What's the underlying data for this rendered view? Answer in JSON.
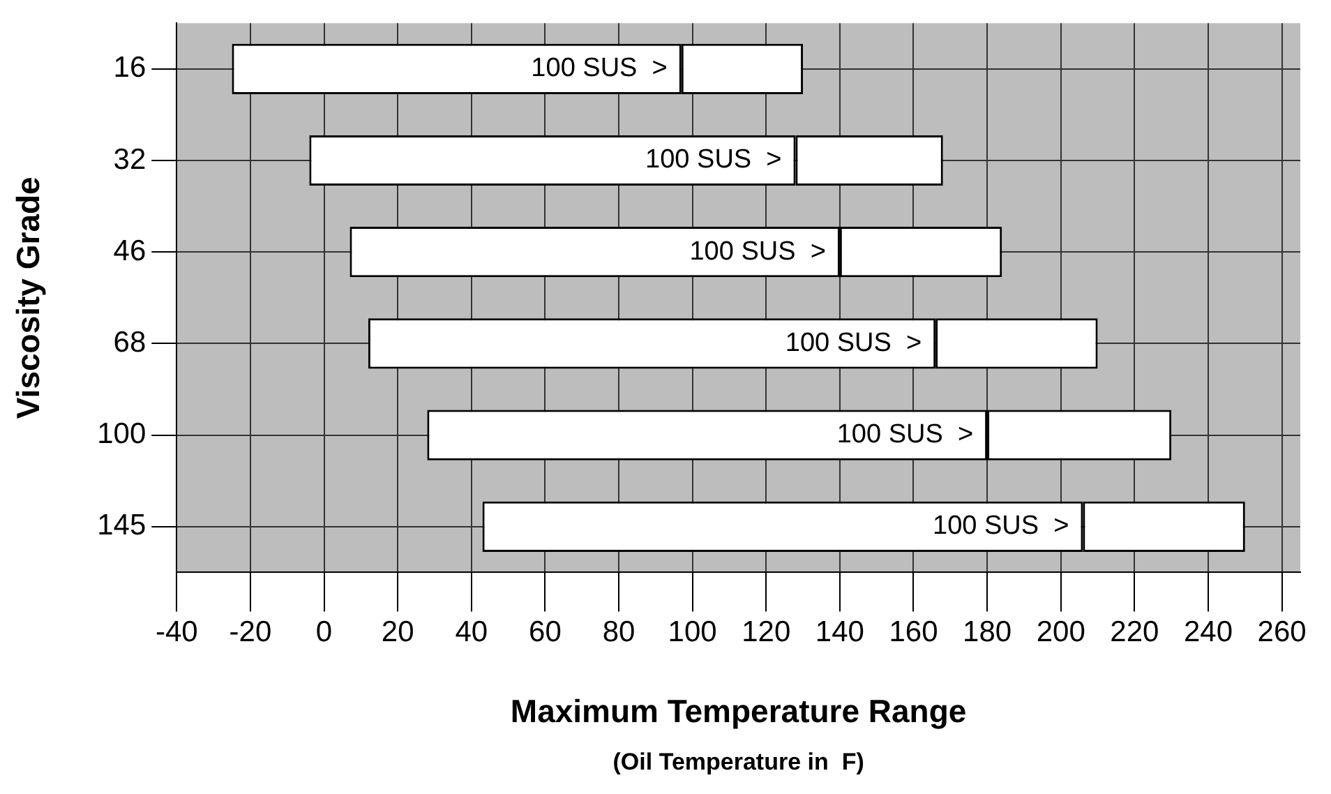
{
  "chart_data": {
    "type": "bar",
    "orientation": "horizontal",
    "xlabel": "Maximum Temperature Range",
    "ylabel": "Viscosity Grade",
    "annotations": [
      "(Oil Temperature in  F)"
    ],
    "categories": [
      "16",
      "32",
      "46",
      "68",
      "100",
      "145"
    ],
    "series": [
      {
        "color": "#ffffff",
        "base": [
          -25,
          -4,
          7,
          12,
          28,
          43
        ],
        "values": [
          122,
          132,
          133,
          154,
          152,
          163
        ],
        "value_labels": [
          "100 SUS  >",
          "100 SUS  >",
          "100 SUS  >",
          "100 SUS  >",
          "100 SUS  >",
          "100 SUS  >"
        ]
      },
      {
        "color": "#ffffff",
        "base": [
          97,
          128,
          140,
          166,
          180,
          206
        ],
        "values": [
          33,
          40,
          44,
          44,
          50,
          44
        ]
      }
    ],
    "xlim": [
      -40,
      265
    ],
    "xticks": [
      -40,
      -20,
      0,
      20,
      40,
      60,
      80,
      100,
      120,
      140,
      160,
      180,
      200,
      220,
      240,
      260
    ],
    "grid": true,
    "legend": false
  }
}
